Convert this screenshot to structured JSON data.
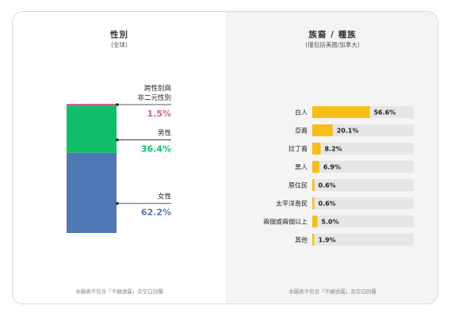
{
  "gender": {
    "title": "性別",
    "subtitle": "(全球)",
    "footnote": "本圖表不包含「不願透露」及空白回覆"
  },
  "ethnicity": {
    "title": "族裔 / 種族",
    "subtitle": "(僅包括美國/加拿大)",
    "footnote": "本圖表不包含「不願透露」及空白回覆"
  },
  "chart_data": [
    {
      "type": "bar",
      "stacked": true,
      "title": "性別",
      "subtitle": "(全球)",
      "series": [
        {
          "name": "女性",
          "value": 62.2,
          "value_label": "62.2%",
          "color": "#4f77b4"
        },
        {
          "name": "男性",
          "value": 36.4,
          "value_label": "36.4%",
          "color": "#11bf6a"
        },
        {
          "name": "跨性別與\n非二元性別",
          "value": 1.5,
          "value_label": "1.5%",
          "color": "#cf5f8e"
        }
      ]
    },
    {
      "type": "bar",
      "orientation": "horizontal",
      "title": "族裔 / 種族",
      "subtitle": "(僅包括美國/加拿大)",
      "xlim": [
        0,
        100
      ],
      "bar_color": "#f5be18",
      "track_color": "#e6e6e6",
      "categories": [
        "白人",
        "亞裔",
        "拉丁裔",
        "黑人",
        "原住民",
        "太平洋島民",
        "兩個或兩個以上",
        "其他"
      ],
      "values": [
        56.6,
        20.1,
        8.2,
        6.9,
        0.6,
        0.6,
        5.0,
        1.9
      ],
      "value_labels": [
        "56.6%",
        "20.1%",
        "8.2%",
        "6.9%",
        "0.6%",
        "0.6%",
        "5.0%",
        "1.9%"
      ]
    }
  ]
}
